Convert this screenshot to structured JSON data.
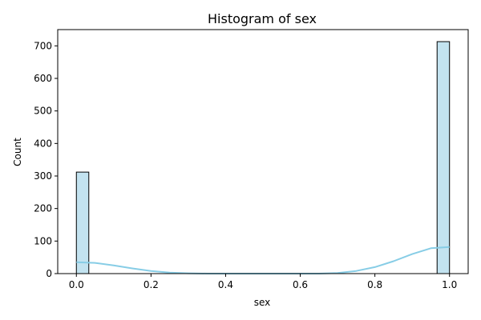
{
  "chart_data": {
    "type": "bar",
    "title": "Histogram of sex",
    "xlabel": "sex",
    "ylabel": "Count",
    "xlim": [
      -0.05,
      1.05
    ],
    "ylim": [
      0,
      750
    ],
    "x_ticks": [
      0.0,
      0.2,
      0.4,
      0.6,
      0.8,
      1.0
    ],
    "x_tick_labels": [
      "0.0",
      "0.2",
      "0.4",
      "0.6",
      "0.8",
      "1.0"
    ],
    "y_ticks": [
      0,
      100,
      200,
      300,
      400,
      500,
      600,
      700
    ],
    "y_tick_labels": [
      "0",
      "100",
      "200",
      "300",
      "400",
      "500",
      "600",
      "700"
    ],
    "bins": [
      {
        "x0": 0.0,
        "x1": 0.0333,
        "count": 312
      },
      {
        "x0": 0.9667,
        "x1": 1.0,
        "count": 713
      }
    ],
    "kde": {
      "x": [
        0.0,
        0.05,
        0.1,
        0.15,
        0.2,
        0.25,
        0.3,
        0.35,
        0.4,
        0.45,
        0.5,
        0.55,
        0.6,
        0.65,
        0.7,
        0.75,
        0.8,
        0.85,
        0.9,
        0.95,
        1.0
      ],
      "y": [
        35,
        33,
        25,
        16,
        8,
        3,
        1,
        0,
        0,
        0,
        0,
        0,
        0,
        0,
        2,
        8,
        20,
        38,
        60,
        78,
        82
      ]
    },
    "grid": false,
    "colors": {
      "bar_fill": "#c3e3f0",
      "bar_edge": "#000000",
      "kde_line": "#87cde6",
      "axis": "#000000"
    }
  }
}
